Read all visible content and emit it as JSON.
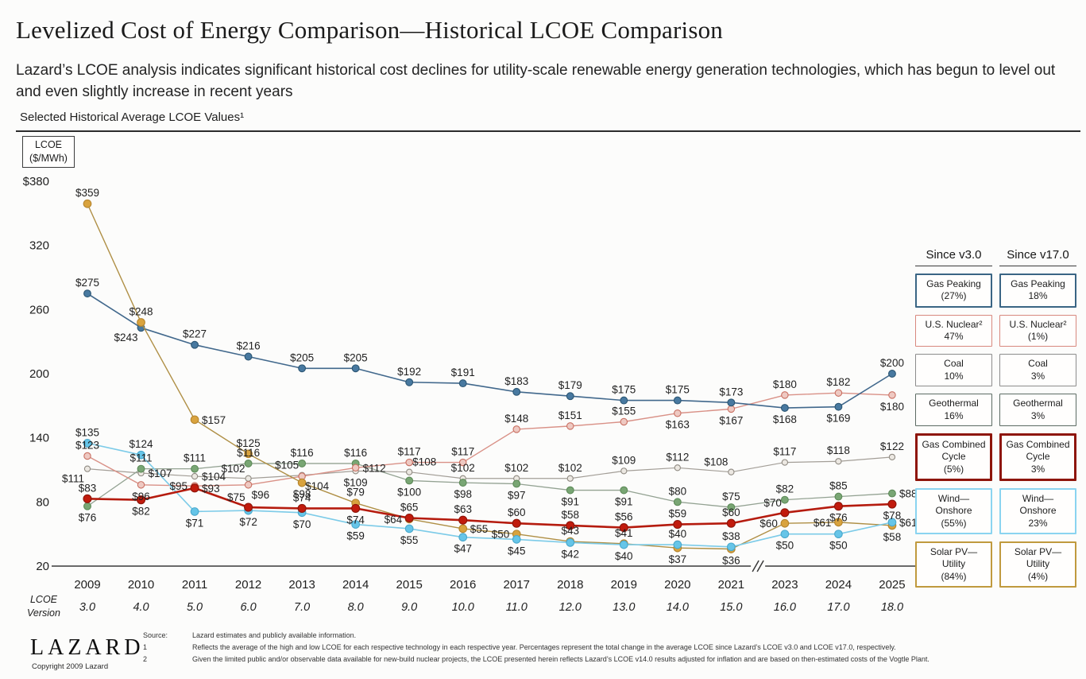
{
  "header": {
    "title": "Levelized Cost of Energy Comparison—Historical LCOE Comparison",
    "subtitle": "Lazard’s LCOE analysis indicates significant historical cost declines for utility-scale renewable energy generation technologies, which has begun to level out and even slightly increase in recent years",
    "section_label": "Selected Historical Average LCOE Values¹"
  },
  "chart_data": {
    "type": "line",
    "title": "Selected Historical Average LCOE Values",
    "ylabel": "LCOE ($/MWh)",
    "y_axis_box": [
      "LCOE",
      "($/MWh)"
    ],
    "ylim": [
      20,
      380
    ],
    "grid": false,
    "legend_position": "right",
    "y_ticks": [
      {
        "label": "$380",
        "value": 380
      },
      {
        "label": "320",
        "value": 320
      },
      {
        "label": "260",
        "value": 260
      },
      {
        "label": "200",
        "value": 200
      },
      {
        "label": "140",
        "value": 140
      },
      {
        "label": "80",
        "value": 80
      },
      {
        "label": "20",
        "value": 20
      }
    ],
    "x": {
      "years": [
        "2009",
        "2010",
        "2011",
        "2012",
        "2013",
        "2014",
        "2015",
        "2016",
        "2017",
        "2018",
        "2019",
        "2020",
        "2021",
        "2023",
        "2024",
        "2025"
      ],
      "versions": [
        "3.0",
        "4.0",
        "5.0",
        "6.0",
        "7.0",
        "8.0",
        "9.0",
        "10.0",
        "11.0",
        "12.0",
        "13.0",
        "14.0",
        "15.0",
        "16.0",
        "17.0",
        "18.0"
      ],
      "axis_label": [
        "LCOE",
        "Version"
      ],
      "break_between": [
        "2021",
        "2023"
      ]
    },
    "series": [
      {
        "name": "Coal",
        "line_color": "#a39e97",
        "line_width": 1.2,
        "marker_fill": "#ece8e2",
        "marker_stroke": "#8f8a82",
        "marker_r": 3.6,
        "values": [
          111,
          107,
          104,
          102,
          105,
          109,
          108,
          102,
          102,
          102,
          109,
          112,
          108,
          117,
          118,
          122
        ],
        "label_pos": [
          "bl",
          "r",
          "r",
          "al",
          "al",
          "b",
          "ar",
          "a",
          "a",
          "a",
          "a",
          "a",
          "al",
          "a",
          "a",
          "a"
        ]
      },
      {
        "name": "Geothermal",
        "line_color": "#93a292",
        "line_width": 1.3,
        "marker_fill": "#79a674",
        "marker_stroke": "#5d8a58",
        "marker_r": 4.4,
        "values": [
          76,
          111,
          111,
          116,
          116,
          116,
          100,
          98,
          97,
          91,
          91,
          80,
          75,
          82,
          85,
          88
        ],
        "label_pos": [
          "b",
          "a",
          "a",
          "a",
          "a",
          "a",
          "b",
          "b",
          "b",
          "b",
          "b",
          "a",
          "a",
          "a",
          "a",
          "r"
        ]
      },
      {
        "name": "U.S. Nuclear",
        "line_color": "#d99187",
        "line_width": 1.4,
        "marker_fill": "#eec9c2",
        "marker_stroke": "#c96f61",
        "marker_r": 4.2,
        "values": [
          123,
          96,
          95,
          96,
          104,
          112,
          117,
          117,
          148,
          151,
          155,
          163,
          167,
          180,
          182,
          180
        ],
        "label_pos": [
          "a",
          "b",
          "l",
          "br",
          "br",
          "r",
          "a",
          "a",
          "a",
          "a",
          "a",
          "b",
          "b",
          "a",
          "a",
          "b"
        ]
      },
      {
        "name": "Gas Peaking",
        "line_color": "#41688c",
        "line_width": 1.6,
        "marker_fill": "#4879a0",
        "marker_stroke": "#2c5673",
        "marker_r": 4.4,
        "values": [
          275,
          243,
          227,
          216,
          205,
          205,
          192,
          191,
          183,
          179,
          175,
          175,
          173,
          168,
          169,
          200
        ],
        "label_pos": [
          "a",
          "bl",
          "a",
          "a",
          "a",
          "a",
          "a",
          "a",
          "a",
          "a",
          "a",
          "a",
          "a",
          "b",
          "b",
          "a"
        ]
      },
      {
        "name": "Solar PV—Utility",
        "line_color": "#af8f45",
        "line_width": 1.4,
        "marker_fill": "#d9a33e",
        "marker_stroke": "#b5842c",
        "marker_r": 4.8,
        "values": [
          359,
          248,
          157,
          125,
          98,
          79,
          64,
          55,
          50,
          43,
          41,
          37,
          36,
          60,
          61,
          58
        ],
        "label_pos": [
          "a",
          "a",
          "r",
          "a",
          "b",
          "a",
          "l",
          "r",
          "l",
          "a",
          "a",
          "b",
          "b",
          "l",
          "l",
          "b"
        ]
      },
      {
        "name": "Wind—Onshore",
        "line_color": "#7ccbe8",
        "line_width": 1.6,
        "marker_fill": "#66c5e8",
        "marker_stroke": "#4aa8cc",
        "marker_r": 4.8,
        "values": [
          135,
          124,
          71,
          72,
          70,
          59,
          55,
          47,
          45,
          42,
          40,
          40,
          38,
          50,
          50,
          61
        ],
        "label_pos": [
          "a",
          "a",
          "b",
          "b",
          "b",
          "b",
          "b",
          "b",
          "b",
          "b",
          "b",
          "a",
          "a",
          "b",
          "b",
          "r"
        ]
      },
      {
        "name": "Gas Combined Cycle",
        "line_color": "#b51b0e",
        "line_width": 2.6,
        "marker_fill": "#c11b0d",
        "marker_stroke": "#8e150a",
        "marker_r": 5,
        "values": [
          83,
          82,
          93,
          75,
          74,
          74,
          65,
          63,
          60,
          58,
          56,
          59,
          60,
          70,
          76,
          78
        ],
        "label_pos": [
          "a",
          "b",
          "r",
          "al",
          "a",
          "b",
          "a",
          "a",
          "a",
          "a",
          "a",
          "a",
          "a",
          "al",
          "b",
          "b"
        ]
      }
    ]
  },
  "legend": {
    "columns": [
      {
        "header": "Since v3.0",
        "items": [
          {
            "lines": [
              "Gas Peaking",
              "(27%)"
            ],
            "border": "#3a6584",
            "bw": 2
          },
          {
            "lines": [
              "U.S. Nuclear²",
              "47%"
            ],
            "border": "#d8887e",
            "bw": 1.5
          },
          {
            "lines": [
              "Coal",
              "10%"
            ],
            "border": "#8c8c8c",
            "bw": 1.5
          },
          {
            "lines": [
              "Geothermal",
              "16%"
            ],
            "border": "#5c6b63",
            "bw": 1.5
          },
          {
            "lines": [
              "Gas Combined",
              "Cycle",
              "(5%)"
            ],
            "border": "#8e150a",
            "bw": 3
          },
          {
            "lines": [
              "Wind—",
              "Onshore",
              "(55%)"
            ],
            "border": "#8ad4f0",
            "bw": 2.5
          },
          {
            "lines": [
              "Solar PV—",
              "Utility",
              "(84%)"
            ],
            "border": "#c09a3e",
            "bw": 2
          }
        ]
      },
      {
        "header": "Since v17.0",
        "items": [
          {
            "lines": [
              "Gas Peaking",
              "18%"
            ],
            "border": "#3a6584",
            "bw": 2
          },
          {
            "lines": [
              "U.S. Nuclear²",
              "(1%)"
            ],
            "border": "#d8887e",
            "bw": 1.5
          },
          {
            "lines": [
              "Coal",
              "3%"
            ],
            "border": "#8c8c8c",
            "bw": 1.5
          },
          {
            "lines": [
              "Geothermal",
              "3%"
            ],
            "border": "#5c6b63",
            "bw": 1.5
          },
          {
            "lines": [
              "Gas Combined",
              "Cycle",
              "3%"
            ],
            "border": "#8e150a",
            "bw": 3
          },
          {
            "lines": [
              "Wind—",
              "Onshore",
              "23%"
            ],
            "border": "#8ad4f0",
            "bw": 2.5
          },
          {
            "lines": [
              "Solar PV—",
              "Utility",
              "(4%)"
            ],
            "border": "#c09a3e",
            "bw": 2
          }
        ]
      }
    ]
  },
  "footer": {
    "logo": "LAZARD",
    "copyright": "Copyright 2009 Lazard",
    "notes": [
      {
        "label": "Source:",
        "text": "Lazard estimates and publicly available information."
      },
      {
        "label": "1",
        "text": "Reflects the average of the high and low LCOE for each respective technology in each respective year. Percentages represent the total change in the average LCOE since Lazard’s LCOE v3.0 and LCOE v17.0, respectively."
      },
      {
        "label": "2",
        "text": "Given the limited public and/or observable data available for new-build nuclear projects, the LCOE presented herein reflects Lazard’s LCOE v14.0 results adjusted for inflation and are based on then-estimated costs of the Vogtle Plant."
      }
    ]
  }
}
